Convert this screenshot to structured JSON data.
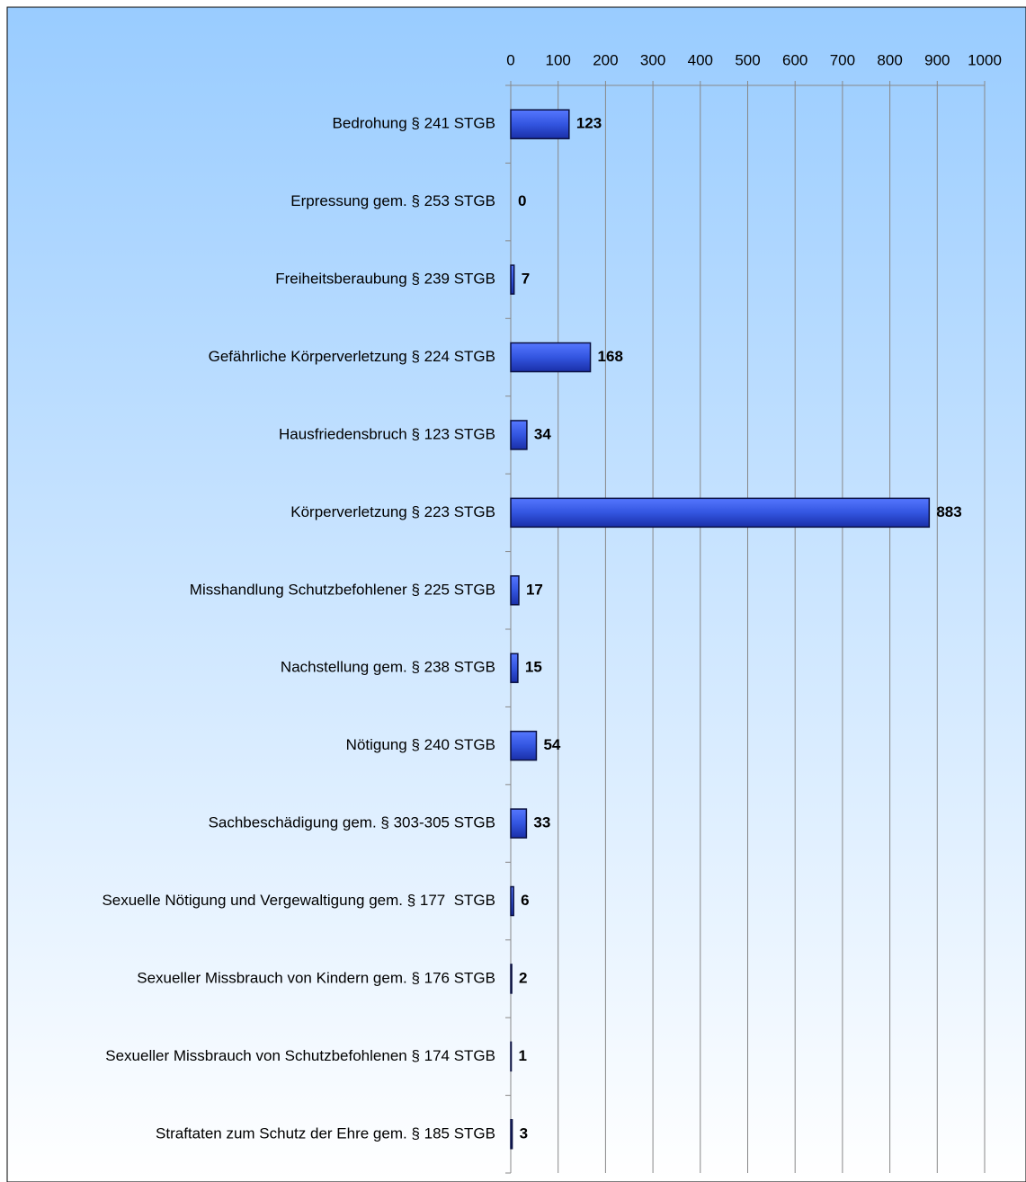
{
  "chart_data": {
    "type": "bar",
    "orientation": "horizontal",
    "categories": [
      "Bedrohung § 241 STGB",
      "Erpressung gem. § 253 STGB",
      "Freiheitsberaubung § 239 STGB",
      "Gefährliche Körperverletzung § 224 STGB",
      "Hausfriedensbruch § 123 STGB",
      "Körperverletzung § 223 STGB",
      "Misshandlung Schutzbefohlener § 225 STGB",
      "Nachstellung gem. § 238 STGB",
      "Nötigung § 240 STGB",
      "Sachbeschädigung gem. § 303-305 STGB",
      "Sexuelle Nötigung und Vergewaltigung gem. § 177  STGB",
      "Sexueller Missbrauch von Kindern gem. § 176 STGB",
      "Sexueller Missbrauch von Schutzbefohlenen § 174 STGB",
      "Straftaten zum Schutz der Ehre gem. § 185 STGB"
    ],
    "values": [
      123,
      0,
      7,
      168,
      34,
      883,
      17,
      15,
      54,
      33,
      6,
      2,
      1,
      3
    ],
    "color": "#3355e0",
    "xlim": [
      0,
      1000
    ],
    "xticks": [
      0,
      100,
      200,
      300,
      400,
      500,
      600,
      700,
      800,
      900,
      1000
    ],
    "grid": true
  }
}
